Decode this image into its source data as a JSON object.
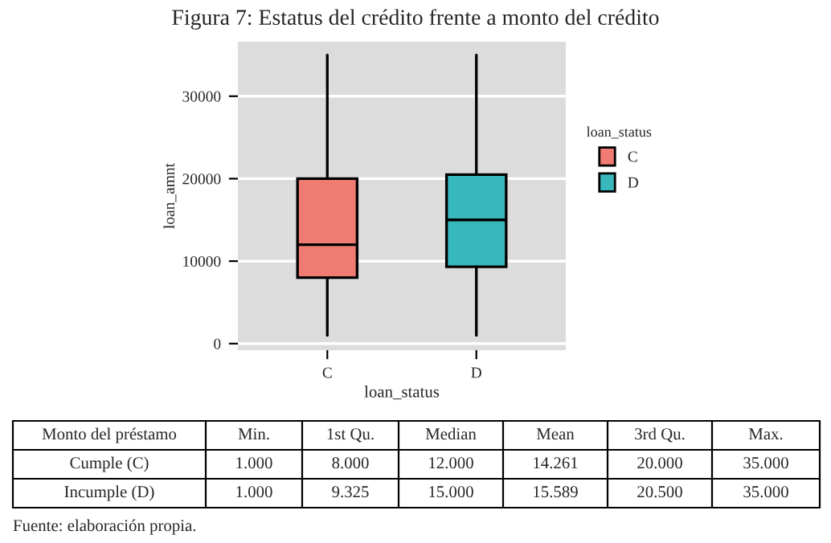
{
  "chart_data": {
    "type": "box",
    "title": "Figura 7: Estatus del crédito frente a monto del crédito",
    "categories": [
      "C",
      "D"
    ],
    "series": [
      {
        "name": "C",
        "color": "#f07b72",
        "boxes": [
          {
            "low": 1000,
            "q1": 8000,
            "median": 12000,
            "q3": 20000,
            "high": 35000
          },
          null
        ]
      },
      {
        "name": "D",
        "color": "#38b8bc",
        "boxes": [
          null,
          {
            "low": 1000,
            "q1": 9325,
            "median": 15000,
            "q3": 20500,
            "high": 35000
          }
        ]
      }
    ],
    "xlabel": "loan_status",
    "ylabel": "loan_amnt",
    "legend_title": "loan_status",
    "legend": "right",
    "ylim": [
      -800,
      36600
    ],
    "yticks": [
      0,
      10000,
      20000,
      30000
    ],
    "grid": "y",
    "value_labels": [
      [
        "1.000",
        "8.000",
        "12.000",
        "14.261",
        "20.000",
        "35.000"
      ],
      [
        "1.000",
        "9.325",
        "15.000",
        "15.589",
        "20.500",
        "35.000"
      ]
    ],
    "annotations": [
      "Monto del préstamo",
      "Min.",
      "1st Qu.",
      "Median",
      "Mean",
      "3rd Qu.",
      "Max.",
      "Cumple (C)",
      "Incumple (D)",
      "Fuente: elaboración propia."
    ]
  }
}
